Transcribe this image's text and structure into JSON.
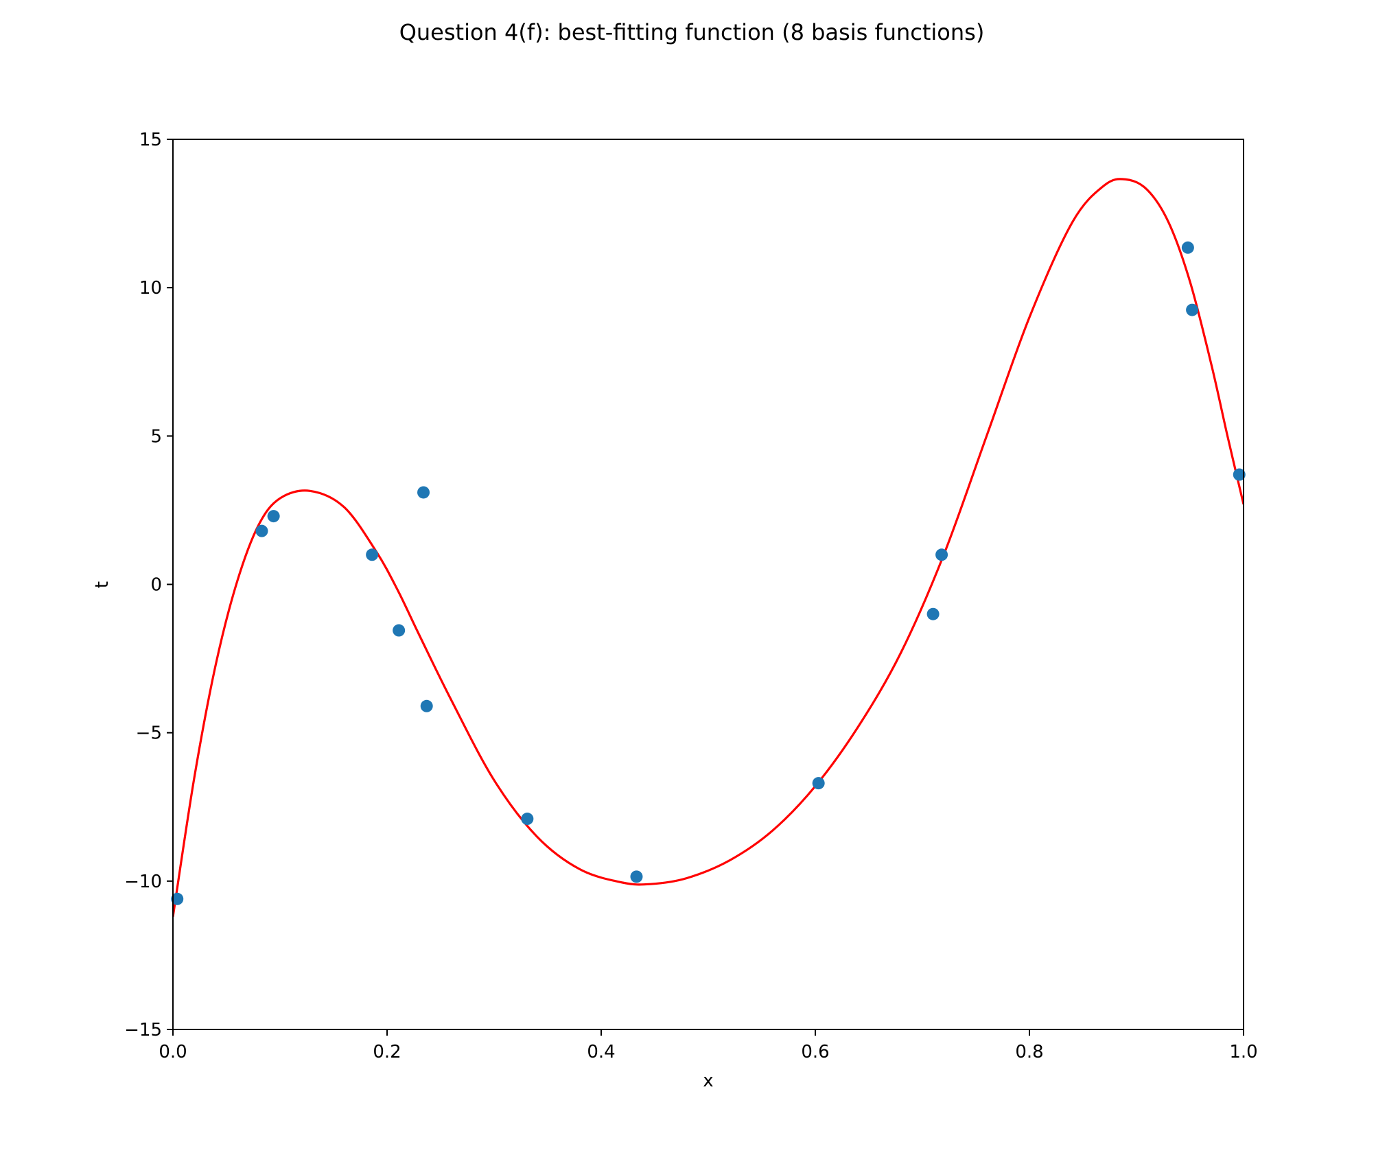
{
  "chart_data": {
    "type": "scatter",
    "title": "Question 4(f): best-fitting function (8 basis functions)",
    "xlabel": "x",
    "ylabel": "t",
    "xlim": [
      0.0,
      1.0
    ],
    "ylim": [
      -15,
      15
    ],
    "x_ticks": [
      0.0,
      0.2,
      0.4,
      0.6,
      0.8,
      1.0
    ],
    "x_tick_labels": [
      "0.0",
      "0.2",
      "0.4",
      "0.6",
      "0.8",
      "1.0"
    ],
    "y_ticks": [
      15,
      10,
      5,
      0,
      -5,
      -10,
      -15
    ],
    "y_tick_labels": [
      "15",
      "10",
      "5",
      "0",
      "−5",
      "−10",
      "−15"
    ],
    "grid": false,
    "legend": "none",
    "series": [
      {
        "kind": "scatter",
        "color": "#1f77b4",
        "points": [
          {
            "x": 0.004,
            "y": -10.6
          },
          {
            "x": 0.083,
            "y": 1.8
          },
          {
            "x": 0.094,
            "y": 2.3
          },
          {
            "x": 0.186,
            "y": 1.0
          },
          {
            "x": 0.211,
            "y": -1.55
          },
          {
            "x": 0.234,
            "y": 3.1
          },
          {
            "x": 0.237,
            "y": -4.1
          },
          {
            "x": 0.331,
            "y": -7.9
          },
          {
            "x": 0.433,
            "y": -9.85
          },
          {
            "x": 0.603,
            "y": -6.7
          },
          {
            "x": 0.71,
            "y": -1.0
          },
          {
            "x": 0.718,
            "y": 1.0
          },
          {
            "x": 0.948,
            "y": 11.35
          },
          {
            "x": 0.952,
            "y": 9.25
          },
          {
            "x": 0.996,
            "y": 3.7
          }
        ]
      },
      {
        "kind": "line",
        "color": "#ff0000",
        "points": [
          {
            "x": 0.0,
            "y": -11.2
          },
          {
            "x": 0.02,
            "y": -6.5
          },
          {
            "x": 0.04,
            "y": -2.7
          },
          {
            "x": 0.06,
            "y": 0.1
          },
          {
            "x": 0.08,
            "y": 2.0
          },
          {
            "x": 0.1,
            "y": 2.9
          },
          {
            "x": 0.128,
            "y": 3.15
          },
          {
            "x": 0.16,
            "y": 2.6
          },
          {
            "x": 0.19,
            "y": 1.1
          },
          {
            "x": 0.21,
            "y": -0.2
          },
          {
            "x": 0.23,
            "y": -1.7
          },
          {
            "x": 0.26,
            "y": -3.9
          },
          {
            "x": 0.3,
            "y": -6.6
          },
          {
            "x": 0.34,
            "y": -8.5
          },
          {
            "x": 0.38,
            "y": -9.6
          },
          {
            "x": 0.42,
            "y": -10.05
          },
          {
            "x": 0.446,
            "y": -10.1
          },
          {
            "x": 0.48,
            "y": -9.9
          },
          {
            "x": 0.52,
            "y": -9.3
          },
          {
            "x": 0.56,
            "y": -8.3
          },
          {
            "x": 0.6,
            "y": -6.8
          },
          {
            "x": 0.64,
            "y": -4.8
          },
          {
            "x": 0.68,
            "y": -2.3
          },
          {
            "x": 0.72,
            "y": 1.0
          },
          {
            "x": 0.76,
            "y": 5.0
          },
          {
            "x": 0.8,
            "y": 9.0
          },
          {
            "x": 0.84,
            "y": 12.2
          },
          {
            "x": 0.87,
            "y": 13.45
          },
          {
            "x": 0.89,
            "y": 13.65
          },
          {
            "x": 0.91,
            "y": 13.3
          },
          {
            "x": 0.93,
            "y": 12.2
          },
          {
            "x": 0.95,
            "y": 10.2
          },
          {
            "x": 0.97,
            "y": 7.4
          },
          {
            "x": 0.985,
            "y": 5.0
          },
          {
            "x": 1.0,
            "y": 2.7
          }
        ]
      }
    ]
  }
}
